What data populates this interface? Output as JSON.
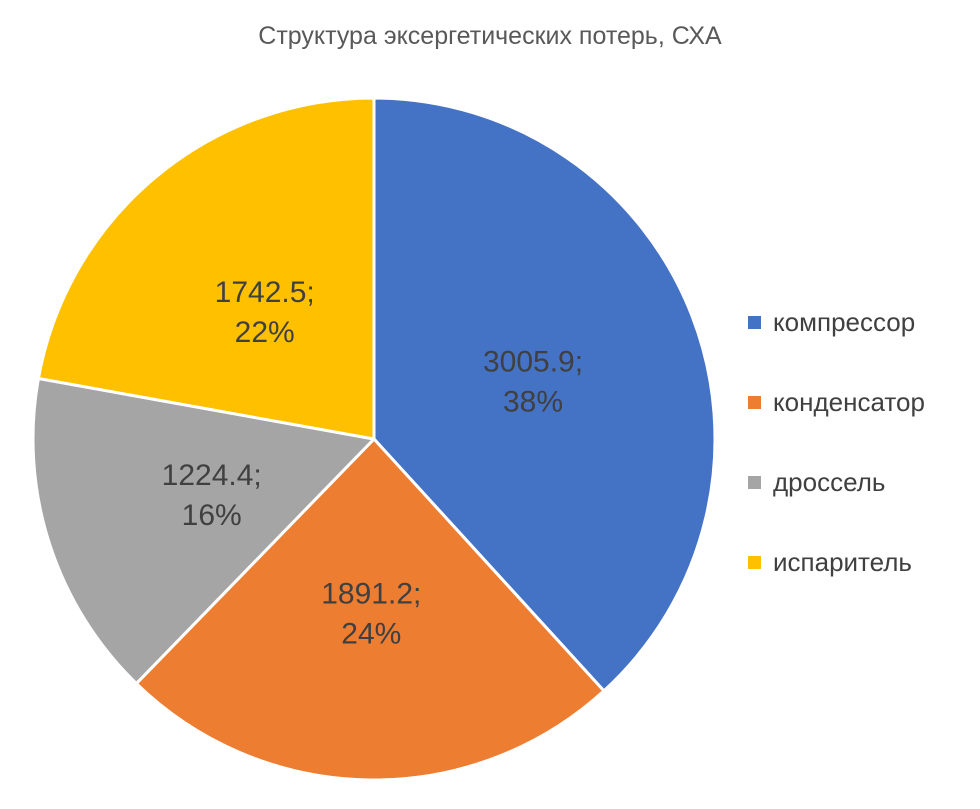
{
  "chart_data": {
    "type": "pie",
    "title": "Структура эксергетических потерь, СХА",
    "categories": [
      "компрессор",
      "конденсатор",
      "дроссель",
      "испаритель"
    ],
    "values": [
      3005.9,
      1891.2,
      1224.4,
      1742.5
    ],
    "value_labels": [
      "3005.9;",
      "1891.2;",
      "1224.4;",
      "1742.5;"
    ],
    "percent_labels": [
      "38%",
      "24%",
      "16%",
      "22%"
    ],
    "colors": [
      "#4472C4",
      "#ED7D31",
      "#A5A5A5",
      "#FFC000"
    ],
    "legend_position": "right"
  }
}
